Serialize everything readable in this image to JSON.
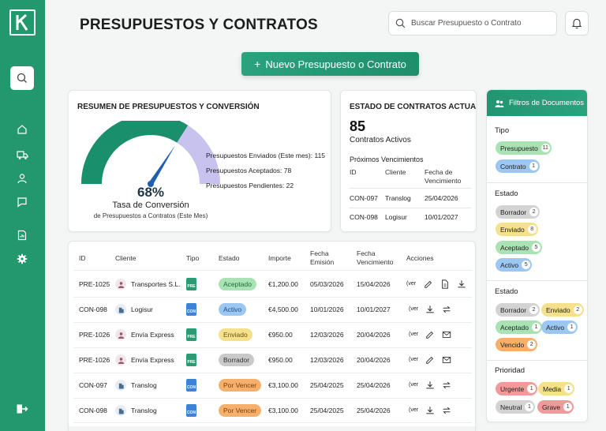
{
  "colors": {
    "brand_green": "#23986f",
    "badge_accepted": "#a9e3b4",
    "badge_active": "#9cc7f2",
    "badge_sent": "#f5e08c",
    "badge_draft": "#c9c9c9",
    "badge_expiring": "#f7b06b",
    "badge_urgent": "#f29a9a"
  },
  "sidebar": {
    "logo_letter": "K",
    "icons": [
      "search-icon",
      "home-icon",
      "truck-icon",
      "user-icon",
      "chat-icon",
      "report-icon",
      "settings-icon",
      "logout-icon"
    ]
  },
  "header": {
    "title": "PRESUPUESTOS Y CONTRATOS",
    "search_placeholder": "Buscar Presupuesto o Contrato",
    "new_button": "Nuevo Presupuesto o Contrato",
    "new_button_plus": "+"
  },
  "summary": {
    "title": "RESUMEN DE PRESUPUESTOS Y CONVERSIÓN",
    "conversion_pct": "68%",
    "conversion_value": 0.68,
    "conversion_label": "Tasa de Conversión",
    "conversion_sub": "de Presupuestos a Contratos (Este Mes)",
    "stats": [
      "Presupuestos Enviados (Este mes): 115",
      "Presupuestos Aceptados: 78",
      "Presupuestos Pendientes: 22"
    ]
  },
  "contracts": {
    "title": "ESTADO DE CONTRATOS ACTUALES",
    "count": "85",
    "count_label": "Contratos Activos",
    "upcoming_label": "Próximos Vencimientos",
    "headers": [
      "ID",
      "Cliente",
      "Fecha de Vencimiento"
    ],
    "rows": [
      {
        "id": "CON-097",
        "client": "Translog",
        "date": "25/04/2026"
      },
      {
        "id": "CON-098",
        "client": "Logisur",
        "date": "10/01/2027"
      }
    ]
  },
  "table": {
    "headers": {
      "id": "ID",
      "client": "Cliente",
      "type": "Tipo",
      "status": "Estado",
      "amount": "Importe",
      "issue_date": "Fecha Emisión",
      "due_date": "Fecha Vencimiento",
      "actions": "Acciones"
    },
    "view_label": "(ver",
    "rows": [
      {
        "id": "PRE-1025",
        "client": "Transportes S.L.",
        "avatar": "person",
        "type": "PRE",
        "status": "Aceptado",
        "status_color": "#a9e3b4",
        "status_text": "#1f6b3a",
        "amount": "€1,200.00",
        "issue": "05/03/2026",
        "due": "15/04/2026",
        "actions": [
          "edit-icon",
          "document-icon",
          "download-icon"
        ]
      },
      {
        "id": "CON-098",
        "client": "Logisur",
        "avatar": "building",
        "type": "CON",
        "status": "Activo",
        "status_color": "#9cc7f2",
        "status_text": "#1a4c86",
        "amount": "€4,500.00",
        "issue": "10/01/2026",
        "due": "10/01/2027",
        "actions": [
          "download-icon",
          "renew-icon"
        ]
      },
      {
        "id": "PRE-1026",
        "client": "Envía Express",
        "avatar": "person",
        "type": "PRE",
        "status": "Enviado",
        "status_color": "#f5e08c",
        "status_text": "#6b5410",
        "amount": "€950.00",
        "issue": "12/03/2026",
        "due": "20/04/2026",
        "actions": [
          "edit-icon",
          "mail-icon"
        ]
      },
      {
        "id": "PRE-1026",
        "client": "Envía Express",
        "avatar": "person",
        "type": "PRE",
        "status": "Borrador",
        "status_color": "#c9c9c9",
        "status_text": "#333333",
        "amount": "€950.00",
        "issue": "12/03/2026",
        "due": "20/04/2026",
        "actions": [
          "edit-icon",
          "mail-icon"
        ]
      },
      {
        "id": "CON-097",
        "client": "Translog",
        "avatar": "building",
        "type": "CON",
        "status": "Por Vencer",
        "status_color": "#f7b06b",
        "status_text": "#7a3e08",
        "amount": "€3,100.00",
        "issue": "25/04/2025",
        "due": "25/04/2026",
        "actions": [
          "download-icon",
          "renew-icon"
        ]
      },
      {
        "id": "CON-098",
        "client": "Translog",
        "avatar": "building",
        "type": "CON",
        "status": "Por Vencer",
        "status_color": "#f7b06b",
        "status_text": "#7a3e08",
        "amount": "€3,100.00",
        "issue": "25/04/2025",
        "due": "25/04/2026",
        "actions": [
          "download-icon",
          "renew-icon"
        ]
      }
    ]
  },
  "filters": {
    "title": "Filtros de Documentos",
    "sections": [
      {
        "label": "Tipo",
        "chips": [
          {
            "label": "Presupuesto",
            "count": "11",
            "color": "#a9e3b4"
          },
          {
            "label": "Contrato",
            "count": "1",
            "color": "#9cc7f2"
          }
        ]
      },
      {
        "label": "Estado",
        "chips": [
          {
            "label": "Borrador",
            "count": "2",
            "color": "#d3d3d3"
          },
          {
            "label": "Enviado",
            "count": "8",
            "color": "#f5e08c"
          },
          {
            "label": "Aceptado",
            "count": "5",
            "color": "#a9e3b4"
          },
          {
            "label": "Activo",
            "count": "5",
            "color": "#9cc7f2"
          }
        ]
      },
      {
        "label": "Estado",
        "chips": [
          {
            "label": "Borrador",
            "count": "2",
            "color": "#d3d3d3"
          },
          {
            "label": "Enviado",
            "count": "2",
            "color": "#f5e08c"
          },
          {
            "label": "Aceptado",
            "count": "1",
            "color": "#a9e3b4"
          },
          {
            "label": "Activo",
            "count": "1",
            "color": "#9cc7f2"
          },
          {
            "label": "Vencido",
            "count": "2",
            "color": "#f7b06b"
          }
        ]
      },
      {
        "label": "Prioridad",
        "chips": [
          {
            "label": "Urgente",
            "count": "1",
            "color": "#f29a9a"
          },
          {
            "label": "Media",
            "count": "1",
            "color": "#f5e08c"
          },
          {
            "label": "Neutral",
            "count": "1",
            "color": "#d3d3d3"
          },
          {
            "label": "Grave",
            "count": "1",
            "color": "#f29a9a"
          }
        ]
      }
    ]
  }
}
